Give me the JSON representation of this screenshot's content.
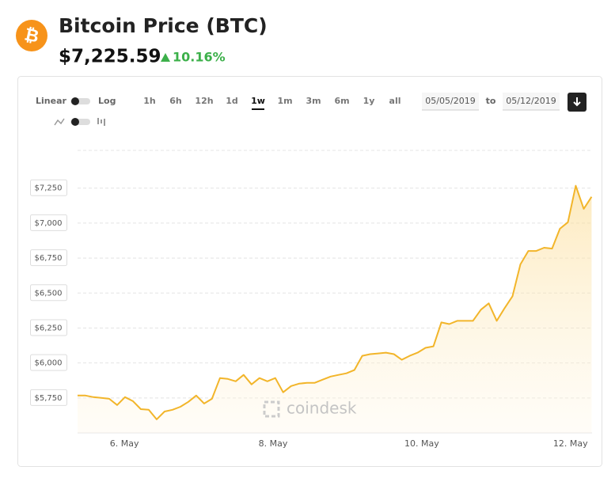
{
  "header": {
    "title": "Bitcoin Price (BTC)",
    "price": "$7,225.59",
    "change": "10.16%"
  },
  "controls": {
    "scale_linear": "Linear",
    "scale_log": "Log",
    "ranges": [
      "1h",
      "6h",
      "12h",
      "1d",
      "1w",
      "1m",
      "3m",
      "6m",
      "1y",
      "all"
    ],
    "active_range": "1w",
    "date_from": "05/05/2019",
    "date_to_word": "to",
    "date_to": "05/12/2019"
  },
  "watermark": "coindesk",
  "chart_data": {
    "type": "line",
    "color": "#f2b52a",
    "grid": true,
    "x": [
      5.37,
      5.476,
      5.583,
      5.689,
      5.796,
      5.902,
      6.008,
      6.115,
      6.221,
      6.327,
      6.434,
      6.54,
      6.646,
      6.753,
      6.859,
      6.966,
      7.072,
      7.178,
      7.285,
      7.391,
      7.497,
      7.604,
      7.71,
      7.816,
      7.923,
      8.029,
      8.135,
      8.242,
      8.348,
      8.455,
      8.561,
      8.667,
      8.774,
      8.88,
      8.986,
      9.093,
      9.199,
      9.306,
      9.412,
      9.518,
      9.625,
      9.731,
      9.837,
      9.944,
      10.05,
      10.157,
      10.263,
      10.369,
      10.476,
      10.582,
      10.688,
      10.795,
      10.901,
      11.008,
      11.114,
      11.22,
      11.327,
      11.433,
      11.539,
      11.646,
      11.752,
      11.858,
      11.965,
      12.071,
      12.178,
      12.284
    ],
    "values": [
      5767,
      5767,
      5756,
      5750,
      5744,
      5699,
      5756,
      5727,
      5670,
      5665,
      5597,
      5653,
      5665,
      5687,
      5722,
      5767,
      5710,
      5744,
      5892,
      5886,
      5869,
      5915,
      5847,
      5892,
      5869,
      5892,
      5790,
      5835,
      5852,
      5858,
      5858,
      5881,
      5903,
      5915,
      5926,
      5949,
      6051,
      6063,
      6068,
      6074,
      6063,
      6023,
      6051,
      6074,
      6108,
      6119,
      6290,
      6278,
      6301,
      6301,
      6301,
      6381,
      6426,
      6301,
      6392,
      6477,
      6705,
      6801,
      6801,
      6824,
      6818,
      6960,
      7006,
      7267,
      7102,
      7188
    ],
    "xlim": [
      5.37,
      12.29
    ],
    "xticks": [
      {
        "value": 6,
        "label": "6. May"
      },
      {
        "value": 8,
        "label": "8. May"
      },
      {
        "value": 10,
        "label": "10. May"
      },
      {
        "value": 12,
        "label": "12. May"
      }
    ],
    "ylim": [
      5500,
      7520
    ],
    "yticks": [
      {
        "value": 5750,
        "label": "$5,750"
      },
      {
        "value": 6000,
        "label": "$6,000"
      },
      {
        "value": 6250,
        "label": "$6,250"
      },
      {
        "value": 6500,
        "label": "$6,500"
      },
      {
        "value": 6750,
        "label": "$6,750"
      },
      {
        "value": 7000,
        "label": "$7,000"
      },
      {
        "value": 7250,
        "label": "$7,250"
      }
    ]
  }
}
